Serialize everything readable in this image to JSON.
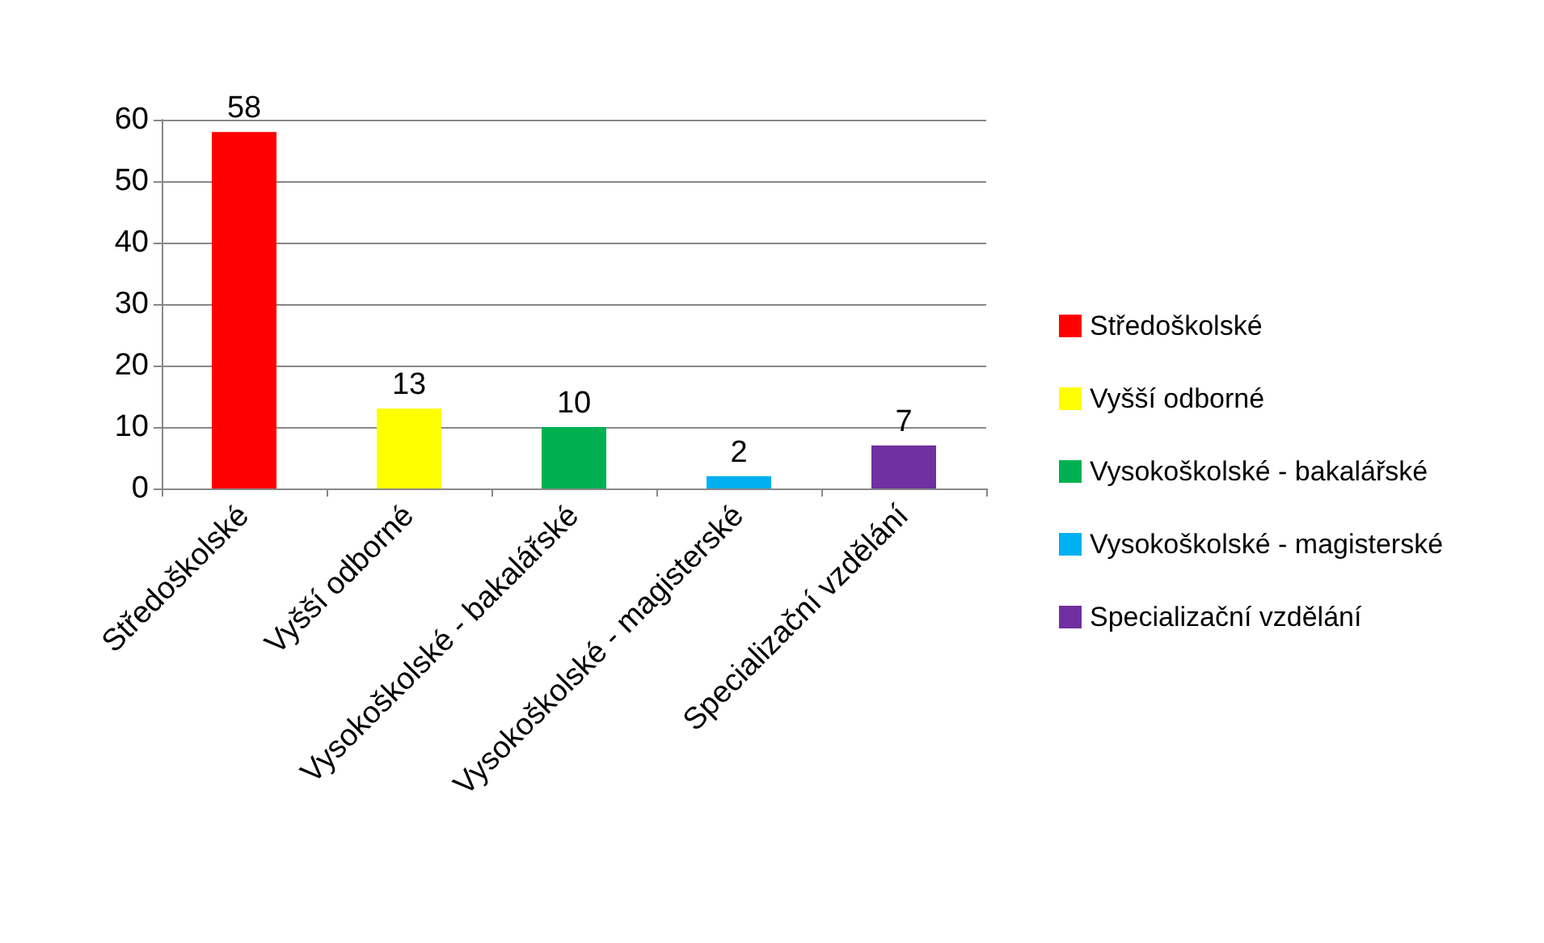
{
  "chart_data": {
    "type": "bar",
    "categories": [
      "Středoškolské",
      "Vyšší odborné",
      "Vysokoškolské - bakalářské",
      "Vysokoškolské - magisterské",
      "Specializační vzdělání"
    ],
    "series": [
      {
        "name": "Středoškolské",
        "color": "#ff0000",
        "values": [
          58,
          null,
          null,
          null,
          null
        ]
      },
      {
        "name": "Vyšší odborné",
        "color": "#ffff00",
        "values": [
          null,
          13,
          null,
          null,
          null
        ]
      },
      {
        "name": "Vysokoškolské - bakalářské",
        "color": "#00b050",
        "values": [
          null,
          null,
          10,
          null,
          null
        ]
      },
      {
        "name": "Vysokoškolské - magisterské",
        "color": "#00b0f0",
        "values": [
          null,
          null,
          null,
          2,
          null
        ]
      },
      {
        "name": "Specializační vzdělání",
        "color": "#7030a0",
        "values": [
          null,
          null,
          null,
          null,
          7
        ]
      }
    ],
    "ylim": [
      0,
      60
    ],
    "yticks": [
      0,
      10,
      20,
      30,
      40,
      50,
      60
    ],
    "grid": "y",
    "legend": "right",
    "data_labels": true
  }
}
